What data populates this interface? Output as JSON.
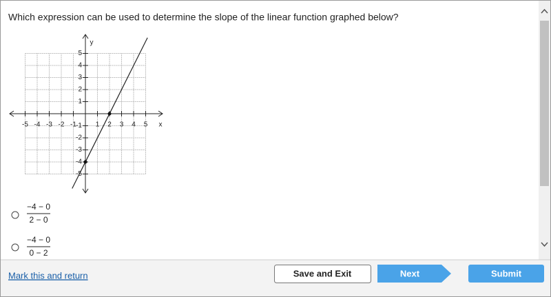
{
  "question": "Which expression can be used to determine the slope of the linear function graphed below?",
  "graph": {
    "x_label": "x",
    "y_label": "y",
    "xticks": [
      -5,
      -4,
      -3,
      -2,
      -1,
      1,
      2,
      3,
      4,
      5
    ],
    "yticks": [
      -5,
      -4,
      -3,
      -2,
      -1,
      1,
      2,
      3,
      4,
      5
    ],
    "points": [
      [
        0,
        -4
      ],
      [
        2,
        0
      ]
    ]
  },
  "options": [
    {
      "numerator": "−4 − 0",
      "denominator": "2 − 0"
    },
    {
      "numerator": "−4 − 0",
      "denominator": "0 − 2"
    }
  ],
  "footer": {
    "link": "Mark this and return",
    "save": "Save and Exit",
    "next": "Next",
    "submit": "Submit"
  }
}
